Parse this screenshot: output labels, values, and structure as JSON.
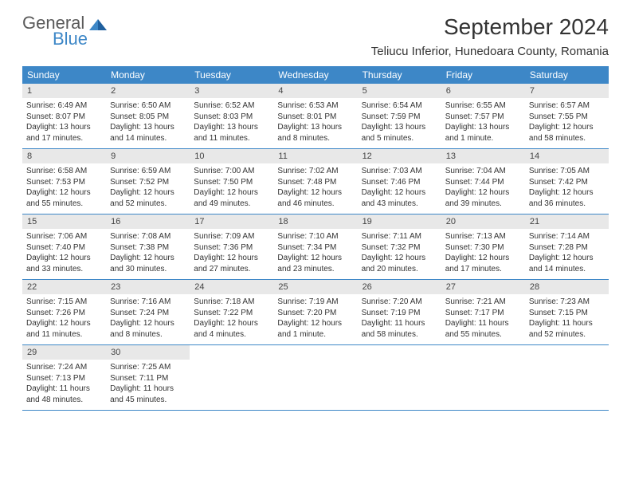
{
  "logo": {
    "line1": "General",
    "line2": "Blue"
  },
  "title": "September 2024",
  "location": "Teliucu Inferior, Hunedoara County, Romania",
  "colors": {
    "header_bg": "#3d87c7",
    "daynum_bg": "#e8e8e8",
    "row_border": "#3d87c7",
    "text": "#333333",
    "logo_gray": "#5a5a5a",
    "logo_blue": "#3d87c7",
    "page_bg": "#ffffff"
  },
  "typography": {
    "title_fontsize": 28,
    "location_fontsize": 15,
    "dayheader_fontsize": 12,
    "daynum_fontsize": 11,
    "body_fontsize": 10
  },
  "day_headers": [
    "Sunday",
    "Monday",
    "Tuesday",
    "Wednesday",
    "Thursday",
    "Friday",
    "Saturday"
  ],
  "weeks": [
    [
      {
        "n": "1",
        "sunrise": "Sunrise: 6:49 AM",
        "sunset": "Sunset: 8:07 PM",
        "dl1": "Daylight: 13 hours",
        "dl2": "and 17 minutes."
      },
      {
        "n": "2",
        "sunrise": "Sunrise: 6:50 AM",
        "sunset": "Sunset: 8:05 PM",
        "dl1": "Daylight: 13 hours",
        "dl2": "and 14 minutes."
      },
      {
        "n": "3",
        "sunrise": "Sunrise: 6:52 AM",
        "sunset": "Sunset: 8:03 PM",
        "dl1": "Daylight: 13 hours",
        "dl2": "and 11 minutes."
      },
      {
        "n": "4",
        "sunrise": "Sunrise: 6:53 AM",
        "sunset": "Sunset: 8:01 PM",
        "dl1": "Daylight: 13 hours",
        "dl2": "and 8 minutes."
      },
      {
        "n": "5",
        "sunrise": "Sunrise: 6:54 AM",
        "sunset": "Sunset: 7:59 PM",
        "dl1": "Daylight: 13 hours",
        "dl2": "and 5 minutes."
      },
      {
        "n": "6",
        "sunrise": "Sunrise: 6:55 AM",
        "sunset": "Sunset: 7:57 PM",
        "dl1": "Daylight: 13 hours",
        "dl2": "and 1 minute."
      },
      {
        "n": "7",
        "sunrise": "Sunrise: 6:57 AM",
        "sunset": "Sunset: 7:55 PM",
        "dl1": "Daylight: 12 hours",
        "dl2": "and 58 minutes."
      }
    ],
    [
      {
        "n": "8",
        "sunrise": "Sunrise: 6:58 AM",
        "sunset": "Sunset: 7:53 PM",
        "dl1": "Daylight: 12 hours",
        "dl2": "and 55 minutes."
      },
      {
        "n": "9",
        "sunrise": "Sunrise: 6:59 AM",
        "sunset": "Sunset: 7:52 PM",
        "dl1": "Daylight: 12 hours",
        "dl2": "and 52 minutes."
      },
      {
        "n": "10",
        "sunrise": "Sunrise: 7:00 AM",
        "sunset": "Sunset: 7:50 PM",
        "dl1": "Daylight: 12 hours",
        "dl2": "and 49 minutes."
      },
      {
        "n": "11",
        "sunrise": "Sunrise: 7:02 AM",
        "sunset": "Sunset: 7:48 PM",
        "dl1": "Daylight: 12 hours",
        "dl2": "and 46 minutes."
      },
      {
        "n": "12",
        "sunrise": "Sunrise: 7:03 AM",
        "sunset": "Sunset: 7:46 PM",
        "dl1": "Daylight: 12 hours",
        "dl2": "and 43 minutes."
      },
      {
        "n": "13",
        "sunrise": "Sunrise: 7:04 AM",
        "sunset": "Sunset: 7:44 PM",
        "dl1": "Daylight: 12 hours",
        "dl2": "and 39 minutes."
      },
      {
        "n": "14",
        "sunrise": "Sunrise: 7:05 AM",
        "sunset": "Sunset: 7:42 PM",
        "dl1": "Daylight: 12 hours",
        "dl2": "and 36 minutes."
      }
    ],
    [
      {
        "n": "15",
        "sunrise": "Sunrise: 7:06 AM",
        "sunset": "Sunset: 7:40 PM",
        "dl1": "Daylight: 12 hours",
        "dl2": "and 33 minutes."
      },
      {
        "n": "16",
        "sunrise": "Sunrise: 7:08 AM",
        "sunset": "Sunset: 7:38 PM",
        "dl1": "Daylight: 12 hours",
        "dl2": "and 30 minutes."
      },
      {
        "n": "17",
        "sunrise": "Sunrise: 7:09 AM",
        "sunset": "Sunset: 7:36 PM",
        "dl1": "Daylight: 12 hours",
        "dl2": "and 27 minutes."
      },
      {
        "n": "18",
        "sunrise": "Sunrise: 7:10 AM",
        "sunset": "Sunset: 7:34 PM",
        "dl1": "Daylight: 12 hours",
        "dl2": "and 23 minutes."
      },
      {
        "n": "19",
        "sunrise": "Sunrise: 7:11 AM",
        "sunset": "Sunset: 7:32 PM",
        "dl1": "Daylight: 12 hours",
        "dl2": "and 20 minutes."
      },
      {
        "n": "20",
        "sunrise": "Sunrise: 7:13 AM",
        "sunset": "Sunset: 7:30 PM",
        "dl1": "Daylight: 12 hours",
        "dl2": "and 17 minutes."
      },
      {
        "n": "21",
        "sunrise": "Sunrise: 7:14 AM",
        "sunset": "Sunset: 7:28 PM",
        "dl1": "Daylight: 12 hours",
        "dl2": "and 14 minutes."
      }
    ],
    [
      {
        "n": "22",
        "sunrise": "Sunrise: 7:15 AM",
        "sunset": "Sunset: 7:26 PM",
        "dl1": "Daylight: 12 hours",
        "dl2": "and 11 minutes."
      },
      {
        "n": "23",
        "sunrise": "Sunrise: 7:16 AM",
        "sunset": "Sunset: 7:24 PM",
        "dl1": "Daylight: 12 hours",
        "dl2": "and 8 minutes."
      },
      {
        "n": "24",
        "sunrise": "Sunrise: 7:18 AM",
        "sunset": "Sunset: 7:22 PM",
        "dl1": "Daylight: 12 hours",
        "dl2": "and 4 minutes."
      },
      {
        "n": "25",
        "sunrise": "Sunrise: 7:19 AM",
        "sunset": "Sunset: 7:20 PM",
        "dl1": "Daylight: 12 hours",
        "dl2": "and 1 minute."
      },
      {
        "n": "26",
        "sunrise": "Sunrise: 7:20 AM",
        "sunset": "Sunset: 7:19 PM",
        "dl1": "Daylight: 11 hours",
        "dl2": "and 58 minutes."
      },
      {
        "n": "27",
        "sunrise": "Sunrise: 7:21 AM",
        "sunset": "Sunset: 7:17 PM",
        "dl1": "Daylight: 11 hours",
        "dl2": "and 55 minutes."
      },
      {
        "n": "28",
        "sunrise": "Sunrise: 7:23 AM",
        "sunset": "Sunset: 7:15 PM",
        "dl1": "Daylight: 11 hours",
        "dl2": "and 52 minutes."
      }
    ],
    [
      {
        "n": "29",
        "sunrise": "Sunrise: 7:24 AM",
        "sunset": "Sunset: 7:13 PM",
        "dl1": "Daylight: 11 hours",
        "dl2": "and 48 minutes."
      },
      {
        "n": "30",
        "sunrise": "Sunrise: 7:25 AM",
        "sunset": "Sunset: 7:11 PM",
        "dl1": "Daylight: 11 hours",
        "dl2": "and 45 minutes."
      },
      {
        "empty": true
      },
      {
        "empty": true
      },
      {
        "empty": true
      },
      {
        "empty": true
      },
      {
        "empty": true
      }
    ]
  ]
}
